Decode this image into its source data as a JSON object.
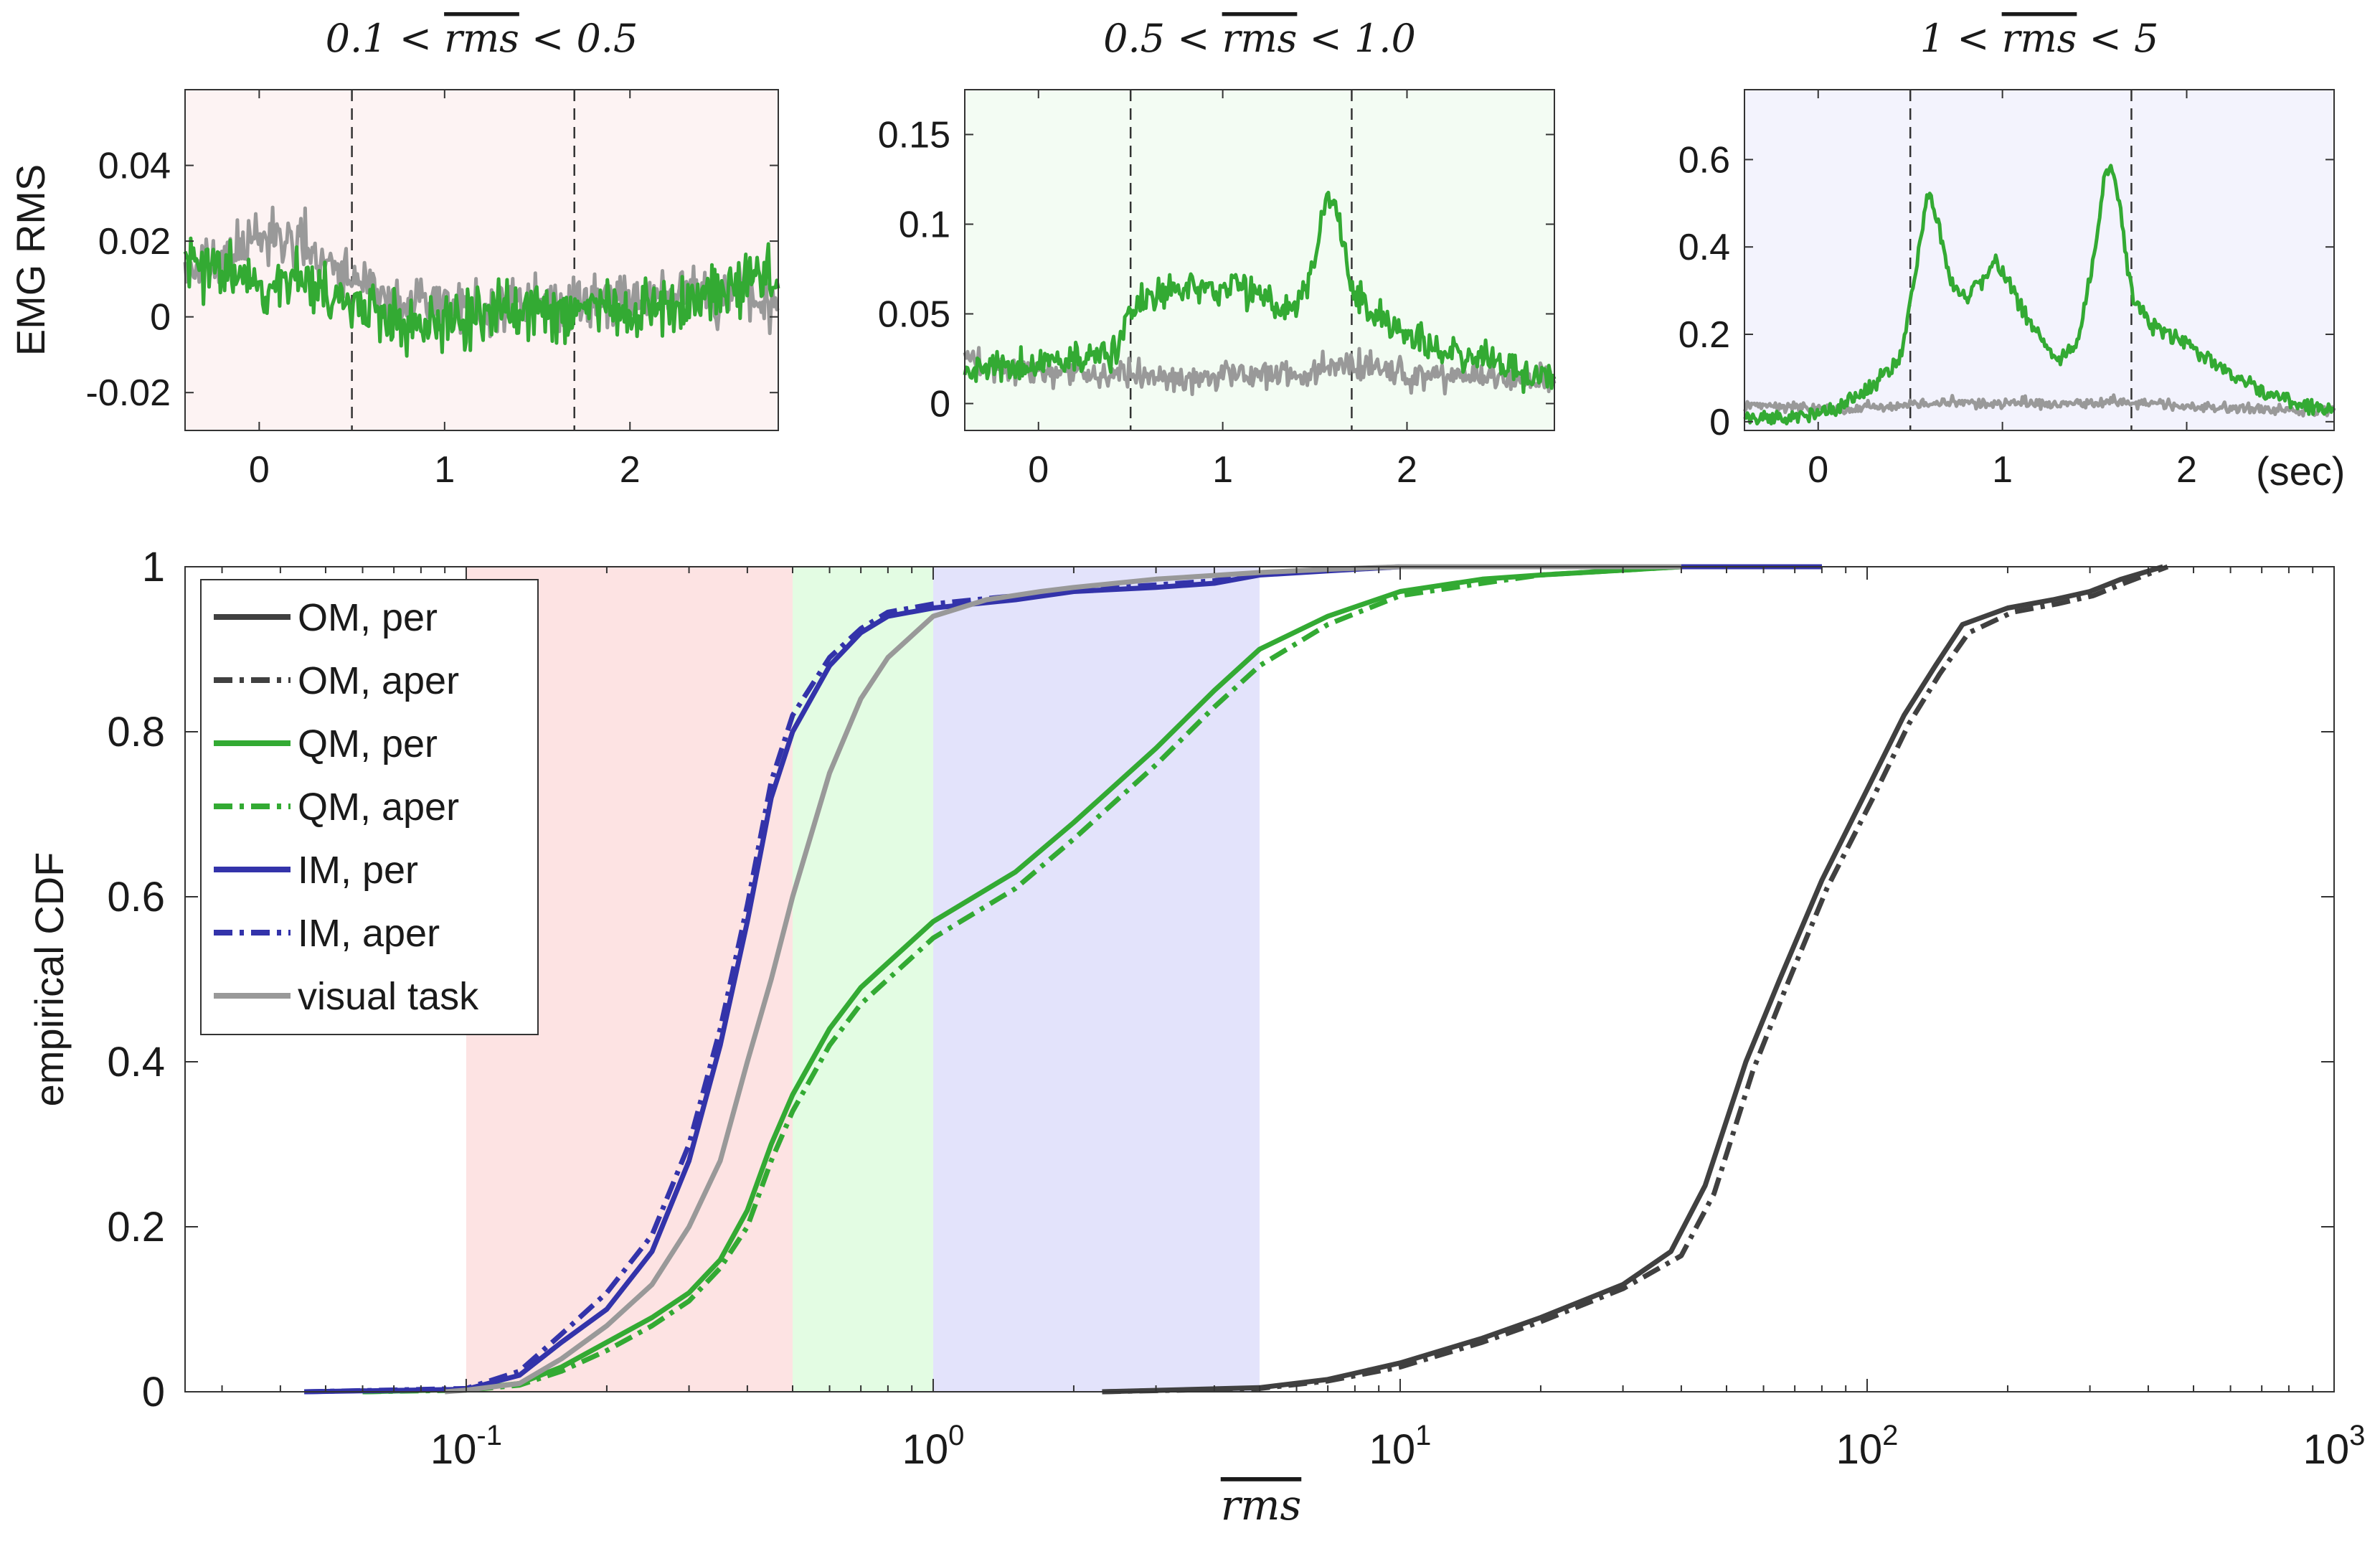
{
  "chart_data": [
    {
      "type": "line",
      "panel": "top-left",
      "title": "0.1 < rms < 0.5",
      "title_parts": {
        "lo": "0.1",
        "var": "rms",
        "hi": "0.5"
      },
      "xlabel": "",
      "ylabel": "EMG RMS",
      "xlim": [
        -0.4,
        2.8
      ],
      "ylim": [
        -0.03,
        0.06
      ],
      "xticks": [
        0,
        1,
        2
      ],
      "xtick_labels": [
        "0",
        "1",
        "2"
      ],
      "yticks": [
        -0.02,
        0,
        0.02,
        0.04
      ],
      "ytick_labels": [
        "-0.02",
        "0",
        "0.02",
        "0.04"
      ],
      "vlines": [
        0.5,
        1.7
      ],
      "background": "#fdf3f3",
      "series": [
        {
          "name": "visual task",
          "color": "#999999",
          "x": [
            -0.4,
            -0.2,
            0,
            0.2,
            0.4,
            0.6,
            0.8,
            1.0,
            1.2,
            1.4,
            1.6,
            1.8,
            2.0,
            2.2,
            2.4,
            2.6,
            2.8
          ],
          "y": [
            0.012,
            0.015,
            0.022,
            0.02,
            0.014,
            0.006,
            0.004,
            0.003,
            0.002,
            0.004,
            0.003,
            0.005,
            0.004,
            0.006,
            0.007,
            0.006,
            0.002
          ],
          "noise": 0.007,
          "seed": 11
        },
        {
          "name": "QM",
          "color": "#33aa33",
          "x": [
            -0.4,
            -0.2,
            0,
            0.2,
            0.4,
            0.6,
            0.8,
            1.0,
            1.2,
            1.4,
            1.6,
            1.8,
            2.0,
            2.2,
            2.4,
            2.6,
            2.8
          ],
          "y": [
            0.014,
            0.012,
            0.01,
            0.009,
            0.006,
            0.002,
            -0.001,
            -0.001,
            0.0,
            0.002,
            0.001,
            0.002,
            0.001,
            0.004,
            0.006,
            0.009,
            0.012
          ],
          "noise": 0.008,
          "seed": 23
        }
      ]
    },
    {
      "type": "line",
      "panel": "top-middle",
      "title": "0.5 < rms < 1.0",
      "title_parts": {
        "lo": "0.5",
        "var": "rms",
        "hi": "1.0"
      },
      "xlabel": "",
      "ylabel": "",
      "xlim": [
        -0.4,
        2.8
      ],
      "ylim": [
        -0.015,
        0.175
      ],
      "xticks": [
        0,
        1,
        2
      ],
      "xtick_labels": [
        "0",
        "1",
        "2"
      ],
      "yticks": [
        0,
        0.05,
        0.1,
        0.15
      ],
      "ytick_labels": [
        "0",
        "0.05",
        "0.1",
        "0.15"
      ],
      "vlines": [
        0.5,
        1.7
      ],
      "background": "#f3fcf3",
      "series": [
        {
          "name": "visual task",
          "color": "#999999",
          "x": [
            -0.4,
            -0.2,
            0,
            0.2,
            0.4,
            0.6,
            0.8,
            1.0,
            1.2,
            1.4,
            1.6,
            1.8,
            2.0,
            2.2,
            2.4,
            2.6,
            2.8
          ],
          "y": [
            0.022,
            0.02,
            0.018,
            0.018,
            0.016,
            0.015,
            0.014,
            0.016,
            0.018,
            0.015,
            0.02,
            0.02,
            0.016,
            0.015,
            0.014,
            0.013,
            0.012
          ],
          "noise": 0.008,
          "seed": 37
        },
        {
          "name": "QM",
          "color": "#33aa33",
          "x": [
            -0.4,
            -0.2,
            0,
            0.2,
            0.4,
            0.5,
            0.6,
            0.8,
            1.0,
            1.1,
            1.2,
            1.3,
            1.4,
            1.5,
            1.55,
            1.6,
            1.65,
            1.7,
            1.8,
            2.0,
            2.2,
            2.4,
            2.6,
            2.8
          ],
          "y": [
            0.02,
            0.02,
            0.022,
            0.025,
            0.028,
            0.05,
            0.058,
            0.066,
            0.063,
            0.066,
            0.06,
            0.052,
            0.055,
            0.08,
            0.108,
            0.118,
            0.09,
            0.065,
            0.05,
            0.038,
            0.03,
            0.025,
            0.018,
            0.01
          ],
          "noise": 0.009,
          "seed": 53
        }
      ]
    },
    {
      "type": "line",
      "panel": "top-right",
      "title": "1 < rms < 5",
      "title_parts": {
        "lo": "1",
        "var": "rms",
        "hi": "5"
      },
      "xlabel": "(sec)",
      "ylabel": "",
      "xlim": [
        -0.4,
        2.8
      ],
      "ylim": [
        -0.02,
        0.76
      ],
      "xticks": [
        0,
        1,
        2
      ],
      "xtick_labels": [
        "0",
        "1",
        "2"
      ],
      "yticks": [
        0,
        0.2,
        0.4,
        0.6
      ],
      "ytick_labels": [
        "0",
        "0.2",
        "0.4",
        "0.6"
      ],
      "vlines": [
        0.5,
        1.7
      ],
      "background": "#f3f3fd",
      "series": [
        {
          "name": "visual task",
          "color": "#999999",
          "x": [
            -0.4,
            -0.2,
            0,
            0.2,
            0.4,
            0.6,
            0.8,
            1.0,
            1.2,
            1.4,
            1.6,
            1.8,
            2.0,
            2.2,
            2.4,
            2.6,
            2.8
          ],
          "y": [
            0.04,
            0.035,
            0.03,
            0.032,
            0.035,
            0.04,
            0.045,
            0.04,
            0.045,
            0.04,
            0.045,
            0.04,
            0.035,
            0.03,
            0.03,
            0.028,
            0.025
          ],
          "noise": 0.012,
          "seed": 71
        },
        {
          "name": "QM",
          "color": "#33aa33",
          "x": [
            -0.4,
            -0.2,
            0,
            0.1,
            0.3,
            0.45,
            0.55,
            0.6,
            0.65,
            0.72,
            0.8,
            0.9,
            0.95,
            1.02,
            1.1,
            1.2,
            1.3,
            1.4,
            1.5,
            1.55,
            1.6,
            1.65,
            1.7,
            1.8,
            2.0,
            2.2,
            2.4,
            2.6,
            2.8
          ],
          "y": [
            0.01,
            0.01,
            0.02,
            0.03,
            0.08,
            0.15,
            0.4,
            0.53,
            0.45,
            0.32,
            0.28,
            0.33,
            0.37,
            0.33,
            0.26,
            0.2,
            0.14,
            0.17,
            0.38,
            0.56,
            0.58,
            0.45,
            0.3,
            0.22,
            0.18,
            0.12,
            0.07,
            0.04,
            0.03
          ],
          "noise": 0.018,
          "seed": 97
        }
      ]
    },
    {
      "type": "line",
      "panel": "bottom",
      "xscale": "log",
      "title": "",
      "xlabel": "rms",
      "ylabel": "empirical CDF",
      "xlim": [
        0.025,
        1000
      ],
      "ylim": [
        0,
        1
      ],
      "xticks": [
        0.1,
        1,
        10,
        100,
        1000
      ],
      "xtick_labels": [
        {
          "base": "10",
          "exp": "-1"
        },
        {
          "base": "10",
          "exp": "0"
        },
        {
          "base": "10",
          "exp": "1"
        },
        {
          "base": "10",
          "exp": "2"
        },
        {
          "base": "10",
          "exp": "3"
        }
      ],
      "yticks": [
        0,
        0.2,
        0.4,
        0.6,
        0.8,
        1
      ],
      "ytick_labels": [
        "0",
        "0.2",
        "0.4",
        "0.6",
        "0.8",
        "1"
      ],
      "shaded_bands": [
        {
          "from": 0.1,
          "to": 0.5,
          "color": "#fde3e3"
        },
        {
          "from": 0.5,
          "to": 1.0,
          "color": "#e3fce3"
        },
        {
          "from": 1.0,
          "to": 5.0,
          "color": "#e3e3fb"
        }
      ],
      "legend_position": "top-left",
      "series": [
        {
          "name": "OM, per",
          "color": "#404040",
          "dash": "solid",
          "x": [
            2.3,
            5,
            7,
            10,
            15,
            20,
            30,
            38,
            45,
            55,
            65,
            80,
            100,
            120,
            140,
            160,
            200,
            250,
            300,
            350,
            430
          ],
          "y": [
            0,
            0.005,
            0.015,
            0.035,
            0.065,
            0.09,
            0.13,
            0.17,
            0.25,
            0.4,
            0.5,
            0.62,
            0.73,
            0.82,
            0.88,
            0.93,
            0.95,
            0.96,
            0.97,
            0.985,
            1
          ]
        },
        {
          "name": "OM, aper",
          "color": "#404040",
          "dash": "dashdot",
          "x": [
            2.3,
            5,
            7,
            10,
            15,
            20,
            30,
            40,
            47,
            57,
            67,
            82,
            103,
            123,
            143,
            165,
            205,
            255,
            305,
            355,
            440
          ],
          "y": [
            0,
            0.004,
            0.013,
            0.03,
            0.06,
            0.085,
            0.125,
            0.165,
            0.24,
            0.39,
            0.49,
            0.61,
            0.72,
            0.81,
            0.87,
            0.92,
            0.945,
            0.955,
            0.965,
            0.98,
            1
          ]
        },
        {
          "name": "QM, per",
          "color": "#33aa33",
          "dash": "solid",
          "x": [
            0.06,
            0.1,
            0.13,
            0.16,
            0.2,
            0.25,
            0.3,
            0.35,
            0.4,
            0.45,
            0.5,
            0.6,
            0.7,
            0.8,
            1,
            1.5,
            2,
            3,
            4,
            5,
            7,
            10,
            15,
            20,
            40,
            80
          ],
          "y": [
            0,
            0.003,
            0.01,
            0.03,
            0.06,
            0.09,
            0.12,
            0.16,
            0.22,
            0.3,
            0.36,
            0.44,
            0.49,
            0.52,
            0.57,
            0.63,
            0.69,
            0.78,
            0.85,
            0.9,
            0.94,
            0.97,
            0.985,
            0.99,
            1,
            1
          ]
        },
        {
          "name": "QM, aper",
          "color": "#33aa33",
          "dash": "dashdot",
          "x": [
            0.06,
            0.1,
            0.13,
            0.16,
            0.2,
            0.25,
            0.3,
            0.35,
            0.4,
            0.45,
            0.5,
            0.6,
            0.7,
            0.8,
            1,
            1.5,
            2,
            3,
            4,
            5,
            7,
            10,
            15,
            20,
            40,
            80
          ],
          "y": [
            0,
            0.002,
            0.008,
            0.025,
            0.05,
            0.08,
            0.11,
            0.15,
            0.2,
            0.28,
            0.34,
            0.42,
            0.47,
            0.5,
            0.55,
            0.61,
            0.67,
            0.76,
            0.83,
            0.88,
            0.93,
            0.965,
            0.98,
            0.99,
            1,
            1
          ]
        },
        {
          "name": "IM, per",
          "color": "#3333aa",
          "dash": "solid",
          "x": [
            0.045,
            0.1,
            0.13,
            0.16,
            0.2,
            0.25,
            0.3,
            0.35,
            0.4,
            0.45,
            0.5,
            0.6,
            0.7,
            0.8,
            1,
            1.5,
            2,
            3,
            4,
            5,
            7,
            10,
            20,
            40,
            80
          ],
          "y": [
            0,
            0.003,
            0.02,
            0.06,
            0.1,
            0.17,
            0.28,
            0.42,
            0.57,
            0.72,
            0.8,
            0.88,
            0.92,
            0.94,
            0.95,
            0.96,
            0.97,
            0.975,
            0.98,
            0.99,
            0.995,
            1,
            1,
            1,
            1
          ]
        },
        {
          "name": "IM, aper",
          "color": "#3333aa",
          "dash": "dashdot",
          "x": [
            0.045,
            0.1,
            0.13,
            0.16,
            0.2,
            0.25,
            0.3,
            0.35,
            0.4,
            0.45,
            0.5,
            0.6,
            0.7,
            0.8,
            1,
            1.5,
            2,
            3,
            4,
            5,
            7,
            10,
            20,
            40,
            80
          ],
          "y": [
            0,
            0.004,
            0.025,
            0.07,
            0.12,
            0.19,
            0.3,
            0.44,
            0.59,
            0.74,
            0.82,
            0.89,
            0.925,
            0.945,
            0.955,
            0.965,
            0.972,
            0.978,
            0.983,
            0.992,
            0.996,
            1,
            1,
            1,
            1
          ]
        },
        {
          "name": "visual task",
          "color": "#999999",
          "dash": "solid",
          "x": [
            0.09,
            0.1,
            0.13,
            0.16,
            0.2,
            0.25,
            0.3,
            0.35,
            0.4,
            0.45,
            0.5,
            0.6,
            0.7,
            0.8,
            1,
            1.3,
            1.7,
            2,
            3,
            5,
            7,
            10,
            20,
            40
          ],
          "y": [
            0,
            0.002,
            0.01,
            0.04,
            0.08,
            0.13,
            0.2,
            0.28,
            0.4,
            0.5,
            0.6,
            0.75,
            0.84,
            0.89,
            0.94,
            0.96,
            0.97,
            0.975,
            0.985,
            0.993,
            0.997,
            1,
            1,
            1
          ]
        }
      ]
    }
  ]
}
